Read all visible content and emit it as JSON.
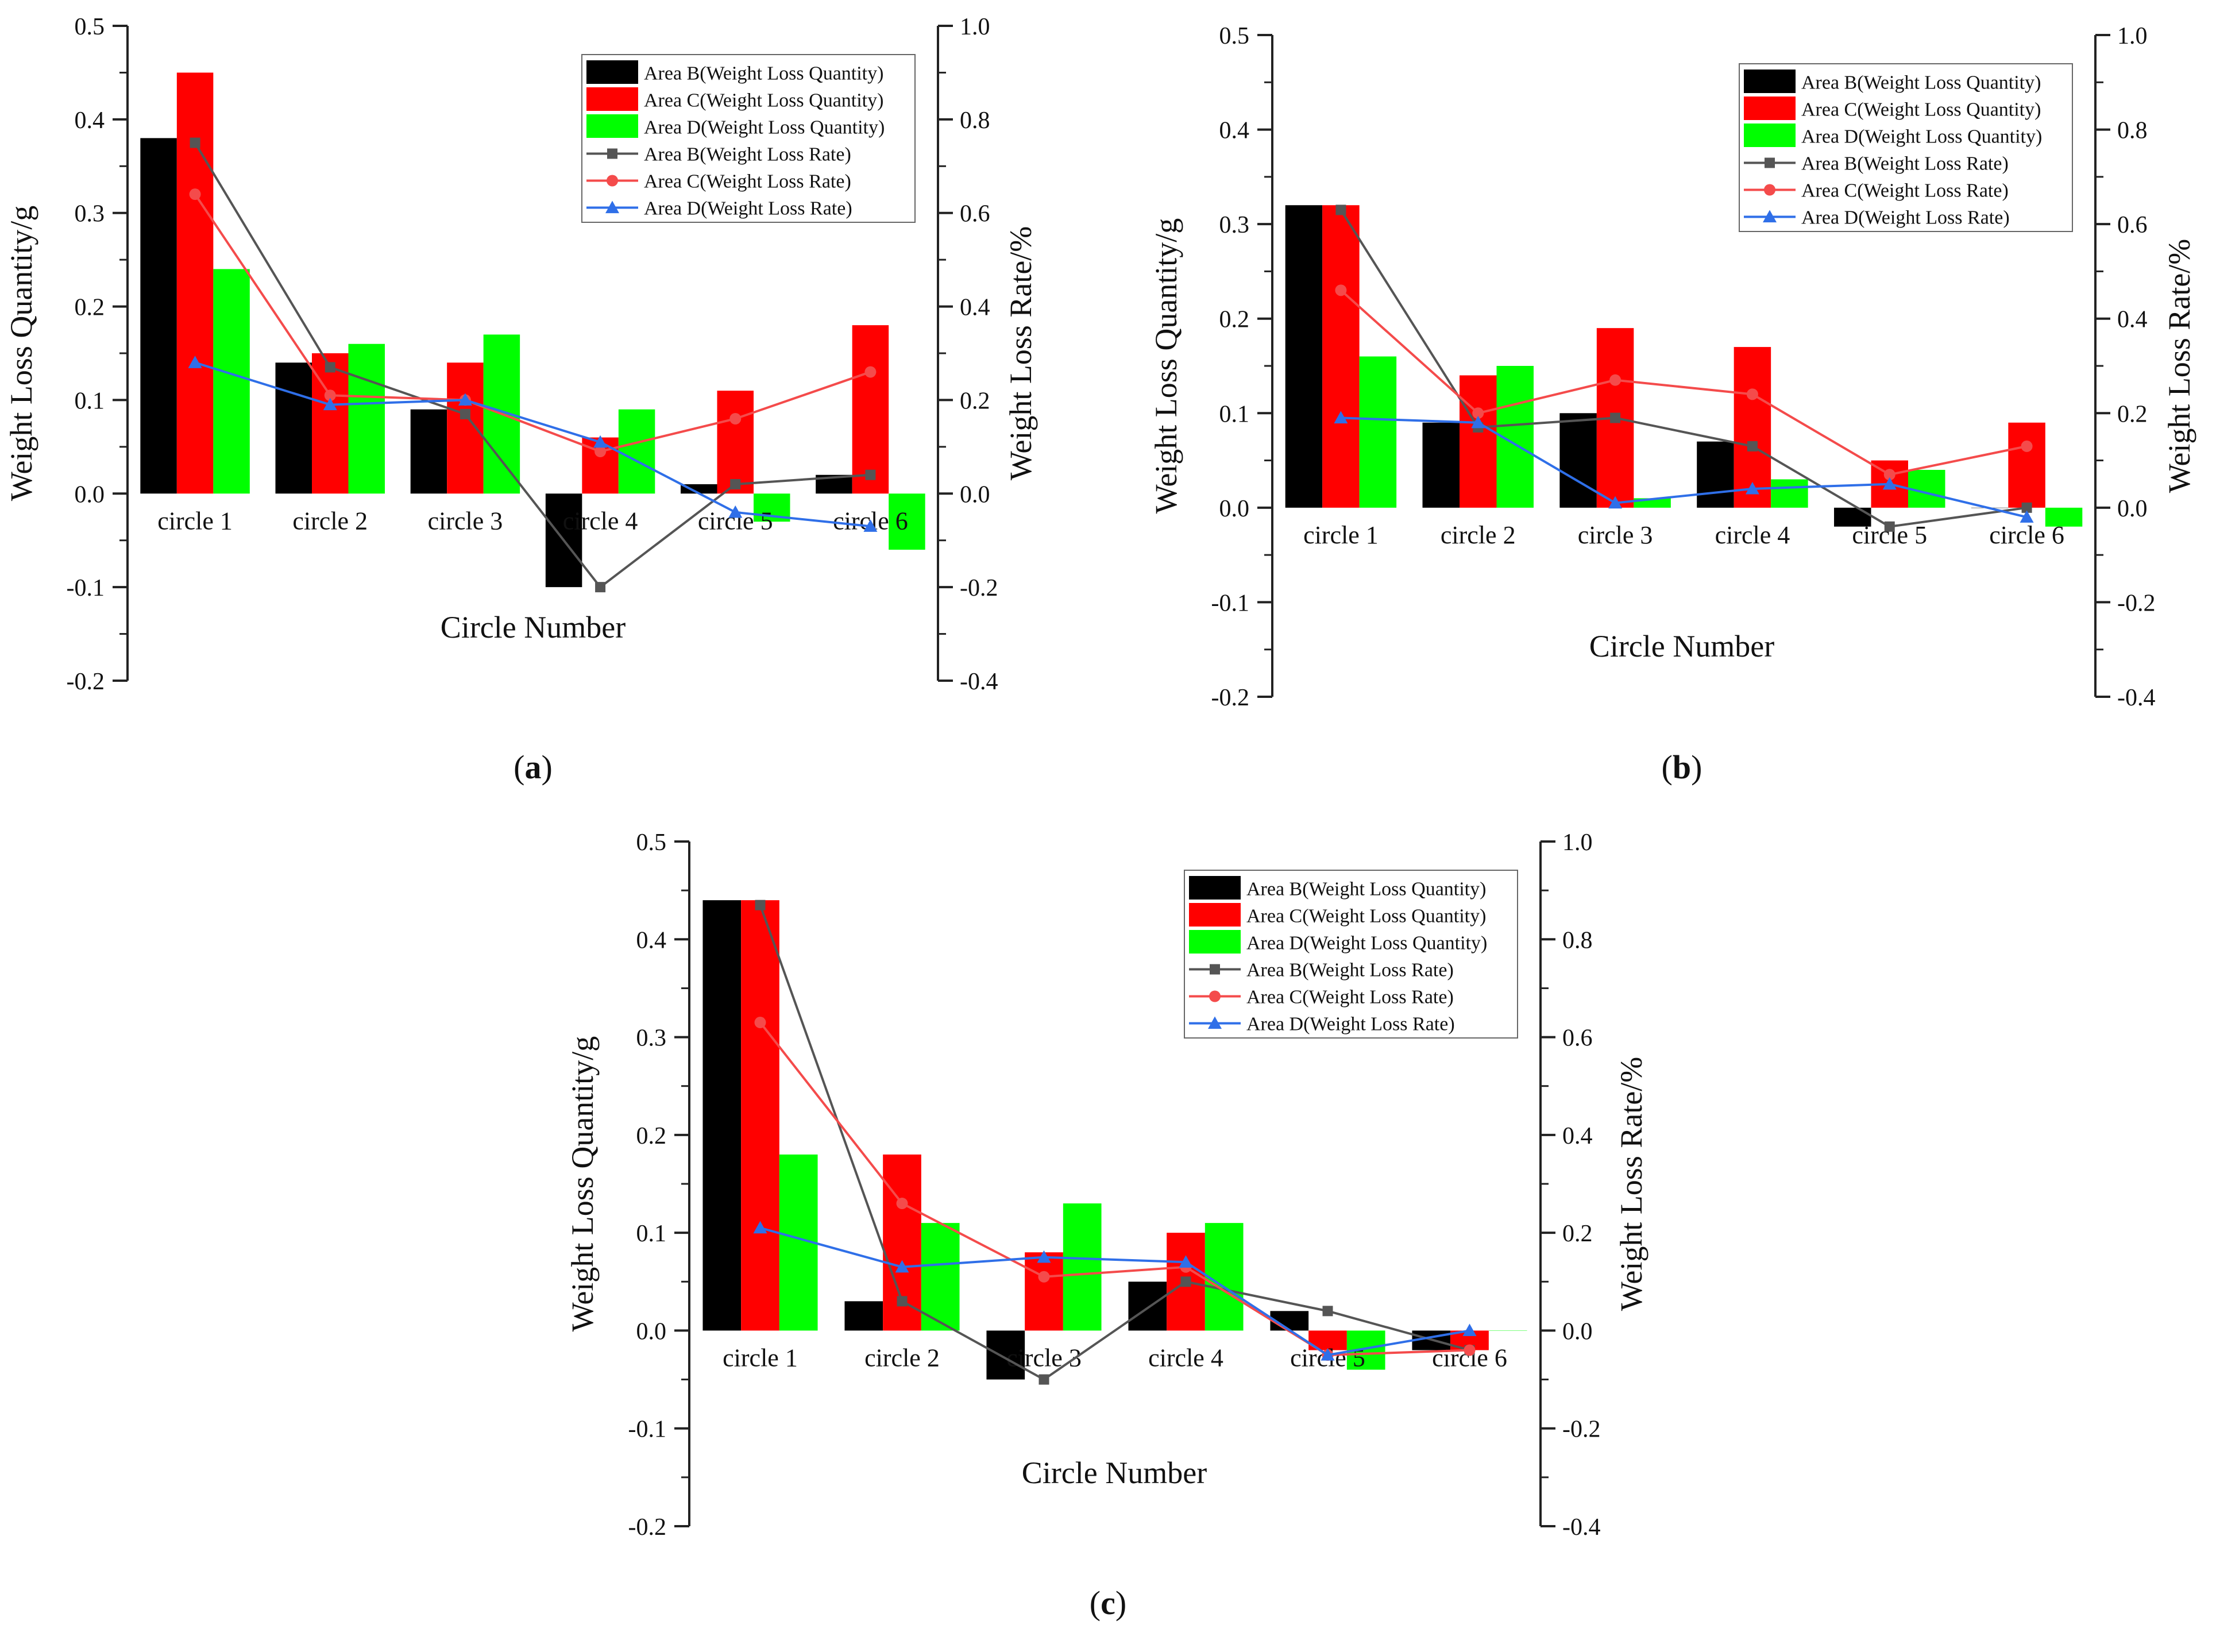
{
  "colors": {
    "area_b": "#000000",
    "area_c": "#ff0000",
    "area_d": "#00ff00",
    "rate_b": "#555555",
    "rate_c": "#f44b4b",
    "rate_d": "#2f6fe8"
  },
  "chart_data": [
    {
      "type": "bar",
      "panel_label": "(a)",
      "xlabel": "Circle Number",
      "ylabel": "Weight Loss Quantity/g",
      "y2label": "Weight Loss Rate/%",
      "ylim": [
        -0.2,
        0.5
      ],
      "y2lim": [
        -0.4,
        1.0
      ],
      "yticks": [
        "0.5",
        "0.4",
        "0.3",
        "0.2",
        "0.1",
        "0.0",
        "-0.1",
        "-0.2"
      ],
      "y2ticks": [
        "1.0",
        "0.8",
        "0.6",
        "0.4",
        "0.2",
        "0.0",
        "-0.2",
        "-0.4"
      ],
      "categories": [
        "circle 1",
        "circle 2",
        "circle 3",
        "circle 4",
        "circle 5",
        "circle 6"
      ],
      "legend_position": "top-right",
      "series": [
        {
          "name": "Area B(Weight Loss Quantity)",
          "kind": "bar",
          "axis": "left",
          "values": [
            0.38,
            0.14,
            0.09,
            -0.1,
            0.01,
            0.02
          ]
        },
        {
          "name": "Area C(Weight Loss Quantity)",
          "kind": "bar",
          "axis": "left",
          "values": [
            0.45,
            0.15,
            0.14,
            0.06,
            0.11,
            0.18
          ]
        },
        {
          "name": "Area D(Weight Loss Quantity)",
          "kind": "bar",
          "axis": "left",
          "values": [
            0.24,
            0.16,
            0.17,
            0.09,
            -0.03,
            -0.06
          ]
        },
        {
          "name": "Area B(Weight Loss Rate)",
          "kind": "line",
          "axis": "right",
          "marker": "square",
          "values": [
            0.75,
            0.27,
            0.17,
            -0.2,
            0.02,
            0.04
          ]
        },
        {
          "name": "Area C(Weight Loss Rate)",
          "kind": "line",
          "axis": "right",
          "marker": "circle",
          "values": [
            0.64,
            0.21,
            0.2,
            0.09,
            0.16,
            0.26
          ]
        },
        {
          "name": "Area D(Weight Loss Rate)",
          "kind": "line",
          "axis": "right",
          "marker": "triangle",
          "values": [
            0.28,
            0.19,
            0.2,
            0.11,
            -0.04,
            -0.07
          ]
        }
      ]
    },
    {
      "type": "bar",
      "panel_label": "(b)",
      "xlabel": "Circle Number",
      "ylabel": "Weight Loss Quantity/g",
      "y2label": "Weight Loss Rate/%",
      "ylim": [
        -0.2,
        0.5
      ],
      "y2lim": [
        -0.4,
        1.0
      ],
      "yticks": [
        "0.5",
        "0.4",
        "0.3",
        "0.2",
        "0.1",
        "0.0",
        "-0.1",
        "-0.2"
      ],
      "y2ticks": [
        "1.0",
        "0.8",
        "0.6",
        "0.4",
        "0.2",
        "0.0",
        "-0.2",
        "-0.4"
      ],
      "categories": [
        "circle 1",
        "circle 2",
        "circle 3",
        "circle 4",
        "circle 5",
        "circle 6"
      ],
      "legend_position": "top-right",
      "series": [
        {
          "name": "Area B(Weight Loss Quantity)",
          "kind": "bar",
          "axis": "left",
          "values": [
            0.32,
            0.09,
            0.1,
            0.07,
            -0.02,
            0.0
          ]
        },
        {
          "name": "Area C(Weight Loss Quantity)",
          "kind": "bar",
          "axis": "left",
          "values": [
            0.32,
            0.14,
            0.19,
            0.17,
            0.05,
            0.09
          ]
        },
        {
          "name": "Area D(Weight Loss Quantity)",
          "kind": "bar",
          "axis": "left",
          "values": [
            0.16,
            0.15,
            0.01,
            0.03,
            0.04,
            -0.02
          ]
        },
        {
          "name": "Area B(Weight Loss Rate)",
          "kind": "line",
          "axis": "right",
          "marker": "square",
          "values": [
            0.63,
            0.17,
            0.19,
            0.13,
            -0.04,
            0.0
          ]
        },
        {
          "name": "Area C(Weight Loss Rate)",
          "kind": "line",
          "axis": "right",
          "marker": "circle",
          "values": [
            0.46,
            0.2,
            0.27,
            0.24,
            0.07,
            0.13
          ]
        },
        {
          "name": "Area D(Weight Loss Rate)",
          "kind": "line",
          "axis": "right",
          "marker": "triangle",
          "values": [
            0.19,
            0.18,
            0.01,
            0.04,
            0.05,
            -0.02
          ]
        }
      ]
    },
    {
      "type": "bar",
      "panel_label": "(c)",
      "xlabel": "Circle Number",
      "ylabel": "Weight Loss Quantity/g",
      "y2label": "Weight Loss Rate/%",
      "ylim": [
        -0.2,
        0.5
      ],
      "y2lim": [
        -0.4,
        1.0
      ],
      "yticks": [
        "0.5",
        "0.4",
        "0.3",
        "0.2",
        "0.1",
        "0.0",
        "-0.1",
        "-0.2"
      ],
      "y2ticks": [
        "1.0",
        "0.8",
        "0.6",
        "0.4",
        "0.2",
        "0.0",
        "-0.2",
        "-0.4"
      ],
      "categories": [
        "circle 1",
        "circle 2",
        "circle 3",
        "circle 4",
        "circle 5",
        "circle 6"
      ],
      "legend_position": "top-right",
      "series": [
        {
          "name": "Area B(Weight Loss Quantity)",
          "kind": "bar",
          "axis": "left",
          "values": [
            0.44,
            0.03,
            -0.05,
            0.05,
            0.02,
            -0.02
          ]
        },
        {
          "name": "Area C(Weight Loss Quantity)",
          "kind": "bar",
          "axis": "left",
          "values": [
            0.44,
            0.18,
            0.08,
            0.1,
            -0.02,
            -0.02
          ]
        },
        {
          "name": "Area D(Weight Loss Quantity)",
          "kind": "bar",
          "axis": "left",
          "values": [
            0.18,
            0.11,
            0.13,
            0.11,
            -0.04,
            0.0
          ]
        },
        {
          "name": "Area B(Weight Loss Rate)",
          "kind": "line",
          "axis": "right",
          "marker": "square",
          "values": [
            0.87,
            0.06,
            -0.1,
            0.1,
            0.04,
            -0.04
          ]
        },
        {
          "name": "Area C(Weight Loss Rate)",
          "kind": "line",
          "axis": "right",
          "marker": "circle",
          "values": [
            0.63,
            0.26,
            0.11,
            0.13,
            -0.05,
            -0.04
          ]
        },
        {
          "name": "Area D(Weight Loss Rate)",
          "kind": "line",
          "axis": "right",
          "marker": "triangle",
          "values": [
            0.21,
            0.13,
            0.15,
            0.14,
            -0.05,
            0.0
          ]
        }
      ]
    }
  ]
}
